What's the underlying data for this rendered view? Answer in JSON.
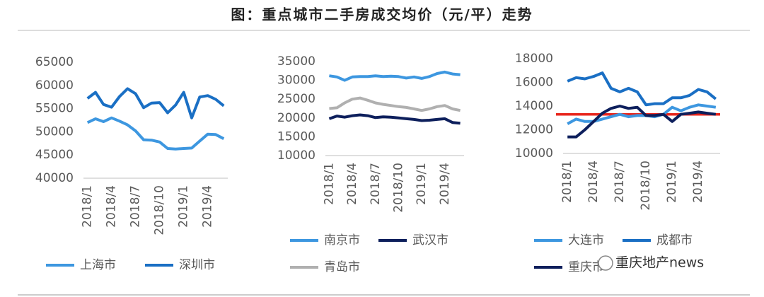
{
  "title": "图：重点城市二手房成交均价（元/平）走势",
  "watermark": "重庆地产news",
  "chart_data": [
    {
      "type": "line",
      "categories": [
        "2018/1",
        null,
        null,
        "2018/4",
        null,
        null,
        "2018/7",
        null,
        null,
        "2018/10",
        null,
        null,
        "2019/1",
        null,
        null,
        "2019/4",
        null,
        null
      ],
      "series": [
        {
          "name": "上海市",
          "color": "#3d97e0",
          "values": [
            52000,
            52800,
            52200,
            53000,
            52300,
            51500,
            50200,
            48300,
            48200,
            47800,
            46400,
            46300,
            46400,
            46500,
            48000,
            49500,
            49400,
            48500
          ]
        },
        {
          "name": "深圳市",
          "color": "#1a6fc4",
          "values": [
            57200,
            58500,
            55900,
            55300,
            57600,
            59300,
            58200,
            55200,
            56200,
            56300,
            54100,
            55800,
            58500,
            53000,
            57500,
            57800,
            57000,
            55600
          ]
        }
      ],
      "ylim": [
        40000,
        65000
      ],
      "yticks": [
        40000,
        45000,
        50000,
        55000,
        60000,
        65000
      ]
    },
    {
      "type": "line",
      "categories": [
        "2018/1",
        null,
        null,
        "2018/4",
        null,
        null,
        "2018/7",
        null,
        null,
        "2018/10",
        null,
        null,
        "2019/1",
        null,
        null,
        "2019/4",
        null,
        null
      ],
      "series": [
        {
          "name": "南京市",
          "color": "#3d97e0",
          "values": [
            31200,
            30900,
            30000,
            30900,
            31000,
            31000,
            31200,
            31000,
            31100,
            31000,
            30600,
            30900,
            30500,
            31000,
            31800,
            32200,
            31700,
            31500
          ]
        },
        {
          "name": "武汉市",
          "color": "#0d1f5c",
          "values": [
            19800,
            20500,
            20200,
            20600,
            20800,
            20600,
            20100,
            20300,
            20200,
            20000,
            19800,
            19600,
            19300,
            19400,
            19600,
            19800,
            18800,
            18600
          ]
        },
        {
          "name": "青岛市",
          "color": "#b0b0b0",
          "values": [
            22500,
            22700,
            24000,
            25000,
            25300,
            24700,
            24000,
            23600,
            23300,
            23000,
            22800,
            22400,
            22000,
            22400,
            23000,
            23300,
            22400,
            22000
          ]
        }
      ],
      "ylim": [
        10000,
        35000
      ],
      "yticks": [
        10000,
        15000,
        20000,
        25000,
        30000,
        35000
      ]
    },
    {
      "type": "line",
      "categories": [
        "2018/1",
        null,
        null,
        "2018/4",
        null,
        null,
        "2018/7",
        null,
        null,
        "2018/10",
        null,
        null,
        "2019/1",
        null,
        null,
        "2019/4",
        null,
        null
      ],
      "series": [
        {
          "name": "大连市",
          "color": "#3d97e0",
          "values": [
            12500,
            12900,
            12700,
            12700,
            12900,
            13100,
            13300,
            13100,
            13200,
            13200,
            13100,
            13300,
            13900,
            13600,
            13900,
            14100,
            14000,
            13900
          ]
        },
        {
          "name": "成都市",
          "color": "#1a6fc4",
          "values": [
            16100,
            16400,
            16300,
            16500,
            16800,
            15500,
            15200,
            15500,
            15200,
            14100,
            14200,
            14200,
            14700,
            14700,
            14900,
            15400,
            15200,
            14600
          ]
        },
        {
          "name": "重庆市",
          "color": "#0d1f5c",
          "values": [
            11400,
            11400,
            12000,
            12700,
            13400,
            13800,
            14000,
            13800,
            13900,
            13200,
            13200,
            13300,
            12700,
            13300,
            13400,
            13500,
            13400,
            13300
          ]
        }
      ],
      "reference_line": {
        "value": 13300,
        "color": "#e8261c"
      },
      "ylim": [
        10000,
        18000
      ],
      "yticks": [
        10000,
        12000,
        14000,
        16000,
        18000
      ]
    }
  ]
}
